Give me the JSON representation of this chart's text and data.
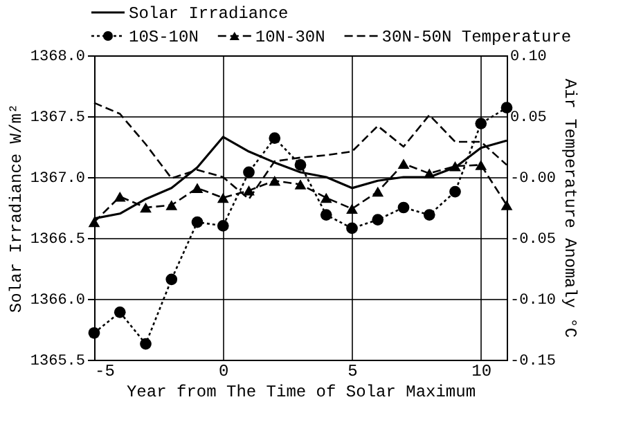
{
  "chart_data": {
    "type": "line",
    "xlabel": "Year from The Time of Solar Maximum",
    "ylabel": "Solar Irradiance  W/m²",
    "y2label": "Air Temperature Anomaly °C",
    "x": [
      -5,
      -4,
      -3,
      -2,
      -1,
      0,
      1,
      2,
      3,
      4,
      5,
      6,
      7,
      8,
      9,
      10,
      11
    ],
    "series": [
      {
        "name": "Solar Irradiance",
        "color": "#000000",
        "line_style": "solid",
        "marker": "none",
        "values": [
          1366.66,
          1366.7,
          1366.82,
          1366.91,
          1367.08,
          1367.33,
          1367.21,
          1367.12,
          1367.04,
          1367.0,
          1366.91,
          1366.97,
          1367.0,
          1367.0,
          1367.08,
          1367.24,
          1367.3
        ]
      },
      {
        "name": "10S-10N",
        "color": "#000000",
        "line_style": "dotted",
        "marker": "circle",
        "axis": "y2",
        "values": [
          -0.128,
          -0.111,
          -0.137,
          -0.084,
          -0.037,
          -0.04,
          0.004,
          0.032,
          0.01,
          -0.031,
          -0.042,
          -0.035,
          -0.025,
          -0.031,
          -0.012,
          0.044,
          0.057
        ]
      },
      {
        "name": "10N-30N",
        "color": "#000000",
        "line_style": "dashed",
        "marker": "triangle",
        "axis": "y2",
        "values": [
          -0.037,
          -0.016,
          -0.025,
          -0.023,
          -0.009,
          -0.017,
          -0.011,
          -0.003,
          -0.006,
          -0.017,
          -0.026,
          -0.012,
          0.011,
          0.003,
          0.009,
          0.01,
          -0.023
        ]
      },
      {
        "name": "30N-50N Temperature",
        "color": "#000000",
        "line_style": "dashed",
        "marker": "none",
        "axis": "y2",
        "values": [
          0.061,
          0.052,
          0.027,
          -0.001,
          0.006,
          0.0,
          -0.018,
          0.013,
          0.016,
          0.018,
          0.021,
          0.042,
          0.025,
          0.051,
          0.029,
          0.029,
          0.01
        ]
      }
    ],
    "xlim": [
      -5,
      11
    ],
    "xticks": [
      -5,
      0,
      5,
      10
    ],
    "ylim": [
      1365.5,
      1368.0
    ],
    "yticks": [
      {
        "value": 1365.5,
        "label": "1365.5"
      },
      {
        "value": 1366.0,
        "label": "1366.0"
      },
      {
        "value": 1366.5,
        "label": "1366.5"
      },
      {
        "value": 1367.0,
        "label": "1367.0"
      },
      {
        "value": 1367.5,
        "label": "1367.5"
      },
      {
        "value": 1368.0,
        "label": "1368.0"
      }
    ],
    "y2lim": [
      -0.15,
      0.1
    ],
    "y2ticks": [
      {
        "value": -0.15,
        "label": "-0.15"
      },
      {
        "value": -0.1,
        "label": "-0.10"
      },
      {
        "value": -0.05,
        "label": "-0.05"
      },
      {
        "value": 0,
        "label": "-0.00"
      },
      {
        "value": 0.05,
        "label": "0.05"
      },
      {
        "value": 0.1,
        "label": "0.10"
      }
    ],
    "grid": true,
    "legend": "top"
  }
}
